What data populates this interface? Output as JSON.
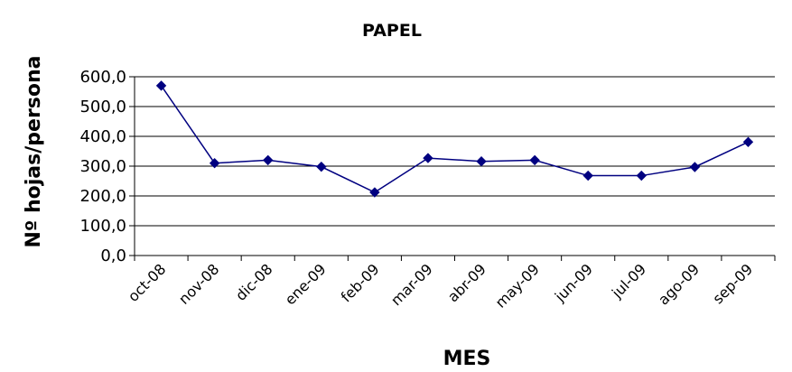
{
  "chart_data": {
    "type": "line",
    "title": "PAPEL",
    "xlabel": "MES",
    "ylabel": "Nº hojas/persona",
    "categories": [
      "oct-08",
      "nov-08",
      "dic-08",
      "ene-09",
      "feb-09",
      "mar-09",
      "abr-09",
      "may-09",
      "jun-09",
      "jul-09",
      "ago-09",
      "sep-09"
    ],
    "values": [
      570,
      310,
      320,
      298,
      212,
      327,
      316,
      320,
      268,
      268,
      297,
      381
    ],
    "ylim": [
      0,
      600
    ],
    "yticks": [
      "0,0",
      "100,0",
      "200,0",
      "300,0",
      "400,0",
      "500,0",
      "600,0"
    ],
    "grid": true,
    "line_color": "#000080",
    "marker": "diamond"
  }
}
